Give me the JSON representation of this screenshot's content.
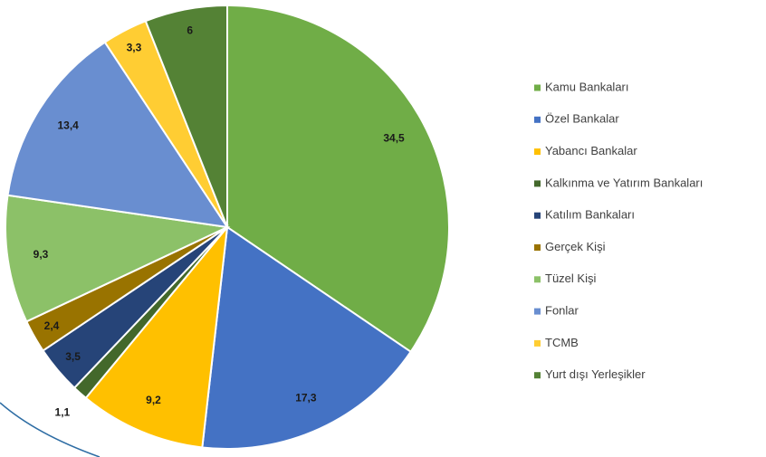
{
  "chart_data": {
    "type": "pie",
    "categories": [
      "Kamu Bankaları",
      "Özel Bankalar",
      "Yabancı Bankalar",
      "Kalkınma ve Yatırım Bankaları",
      "Katılım Bankaları",
      "Gerçek Kişi",
      "Tüzel Kişi",
      "Fonlar",
      "TCMB",
      "Yurt dışı Yerleşikler"
    ],
    "values": [
      34.5,
      17.3,
      9.2,
      1.1,
      3.5,
      2.4,
      9.3,
      13.4,
      3.3,
      6
    ],
    "value_labels": [
      "34,5",
      "17,3",
      "9,2",
      "1,1",
      "3,5",
      "2,4",
      "9,3",
      "13,4",
      "3,3",
      "6"
    ],
    "colors": [
      "#70ad47",
      "#4472c4",
      "#ffc000",
      "#43682b",
      "#264478",
      "#997300",
      "#8cc168",
      "#698ed0",
      "#ffcd33",
      "#548235"
    ],
    "legend": "right"
  }
}
